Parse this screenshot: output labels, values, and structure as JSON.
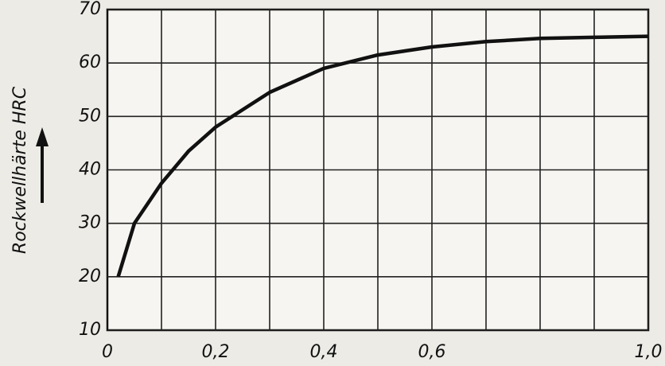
{
  "chart_data": {
    "type": "line",
    "y_label": "Rockwellhärte HRC",
    "x": [
      0.02,
      0.05,
      0.1,
      0.15,
      0.2,
      0.3,
      0.4,
      0.5,
      0.6,
      0.7,
      0.8,
      0.9,
      1.0
    ],
    "series": [
      {
        "color": "#111111",
        "values": [
          20,
          30,
          37.5,
          43.5,
          48,
          54.5,
          59,
          61.5,
          63,
          64,
          64.6,
          64.8,
          65
        ]
      }
    ],
    "xlim": [
      0,
      1.0
    ],
    "ylim": [
      10,
      70
    ],
    "xticks": [
      0,
      {
        "value": 0.2,
        "label": "0,2"
      },
      {
        "value": 0.4,
        "label": "0,4"
      },
      {
        "value": 0.6,
        "label": "0,6"
      },
      {
        "value": 1.0,
        "label": "1,0"
      }
    ],
    "xgrid": [
      0.1,
      0.2,
      0.3,
      0.4,
      0.5,
      0.6,
      0.7,
      0.8,
      0.9,
      1.0
    ],
    "yticks": [
      10,
      20,
      30,
      40,
      50,
      60,
      70
    ],
    "grid": true
  }
}
